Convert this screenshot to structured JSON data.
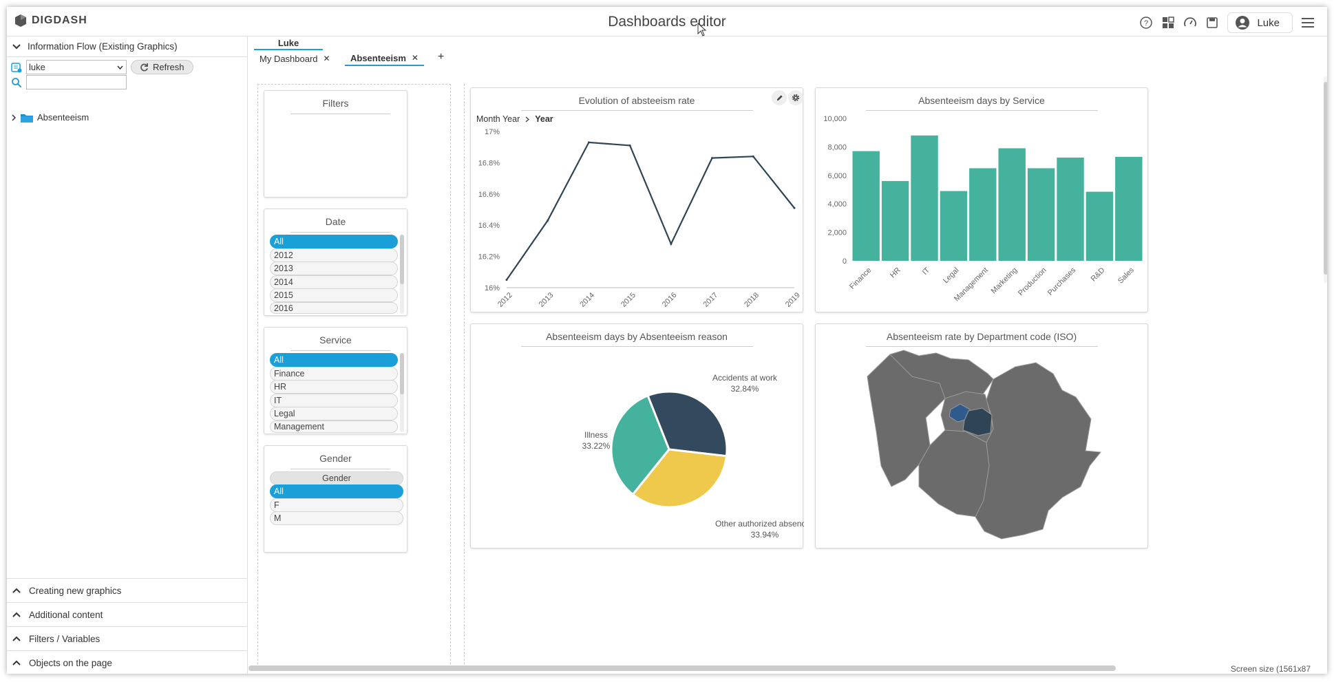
{
  "app": {
    "logo": "DIGDASH",
    "title": "Dashboards editor"
  },
  "header": {
    "user_name": "Luke"
  },
  "left_panel": {
    "section_title": "Information Flow (Existing Graphics)",
    "user_select": "luke",
    "refresh_label": "Refresh",
    "search_placeholder": "",
    "tree_item": "Absenteeism",
    "footer_sections": [
      "Creating new graphics",
      "Additional content",
      "Filters / Variables",
      "Objects on the page"
    ]
  },
  "tabs": {
    "group": "Luke",
    "items": [
      {
        "label": "My Dashboard"
      },
      {
        "label": "Absenteeism"
      }
    ],
    "add": "+"
  },
  "filters": {
    "title": "Filters",
    "date": {
      "title": "Date",
      "items": [
        "All",
        "2012",
        "2013",
        "2014",
        "2015",
        "2016"
      ]
    },
    "service": {
      "title": "Service",
      "items": [
        "All",
        "Finance",
        "HR",
        "IT",
        "Legal",
        "Management"
      ]
    },
    "gender": {
      "title": "Gender",
      "header_button": "Gender",
      "items": [
        "All",
        "F",
        "M"
      ]
    }
  },
  "charts": {
    "line": {
      "title": "Evolution of absteeism rate",
      "breadcrumb_1": "Month Year",
      "breadcrumb_2": "Year"
    },
    "bar": {
      "title": "Absenteeism days by Service"
    },
    "pie": {
      "title": "Absenteeism days by Absenteeism reason"
    },
    "map": {
      "title": "Absenteeism rate by Department code (ISO)"
    }
  },
  "footer": {
    "screen_size": "Screen size (1561x87"
  },
  "colors": {
    "accent": "#1a9fd8",
    "line": "#2e4556",
    "bar": "#45b29d",
    "pie_dark": "#334a5e",
    "pie_teal": "#45b29d",
    "pie_yellow": "#efc94c",
    "map_grey": "#6b6b6b"
  },
  "chart_data": [
    {
      "type": "line",
      "title": "Evolution of absteeism rate",
      "categories": [
        "2012",
        "2013",
        "2014",
        "2015",
        "2016",
        "2017",
        "2018",
        "2019"
      ],
      "values": [
        16.05,
        16.43,
        16.93,
        16.91,
        16.28,
        16.83,
        16.84,
        16.51
      ],
      "ylim": [
        16,
        17
      ],
      "yticks": [
        "16%",
        "16.2%",
        "16.4%",
        "16.6%",
        "16.8%",
        "17%"
      ]
    },
    {
      "type": "bar",
      "title": "Absenteeism days by Service",
      "categories": [
        "Finance",
        "HR",
        "IT",
        "Legal",
        "Management",
        "Marketing",
        "Production",
        "Purchases",
        "R&D",
        "Sales"
      ],
      "values": [
        7700,
        5600,
        8800,
        4900,
        6500,
        7900,
        6500,
        7250,
        4850,
        7300
      ],
      "ylim": [
        0,
        10000
      ],
      "yticks": [
        "0",
        "2,000",
        "4,000",
        "6,000",
        "8,000",
        "10,000"
      ]
    },
    {
      "type": "pie",
      "title": "Absenteeism days by Absenteeism reason",
      "labels": [
        "Accidents at work",
        "Other authorized absences",
        "Illness"
      ],
      "values": [
        32.84,
        33.94,
        33.22
      ],
      "value_labels": [
        "32.84%",
        "33.94%",
        "33.22%"
      ]
    }
  ]
}
